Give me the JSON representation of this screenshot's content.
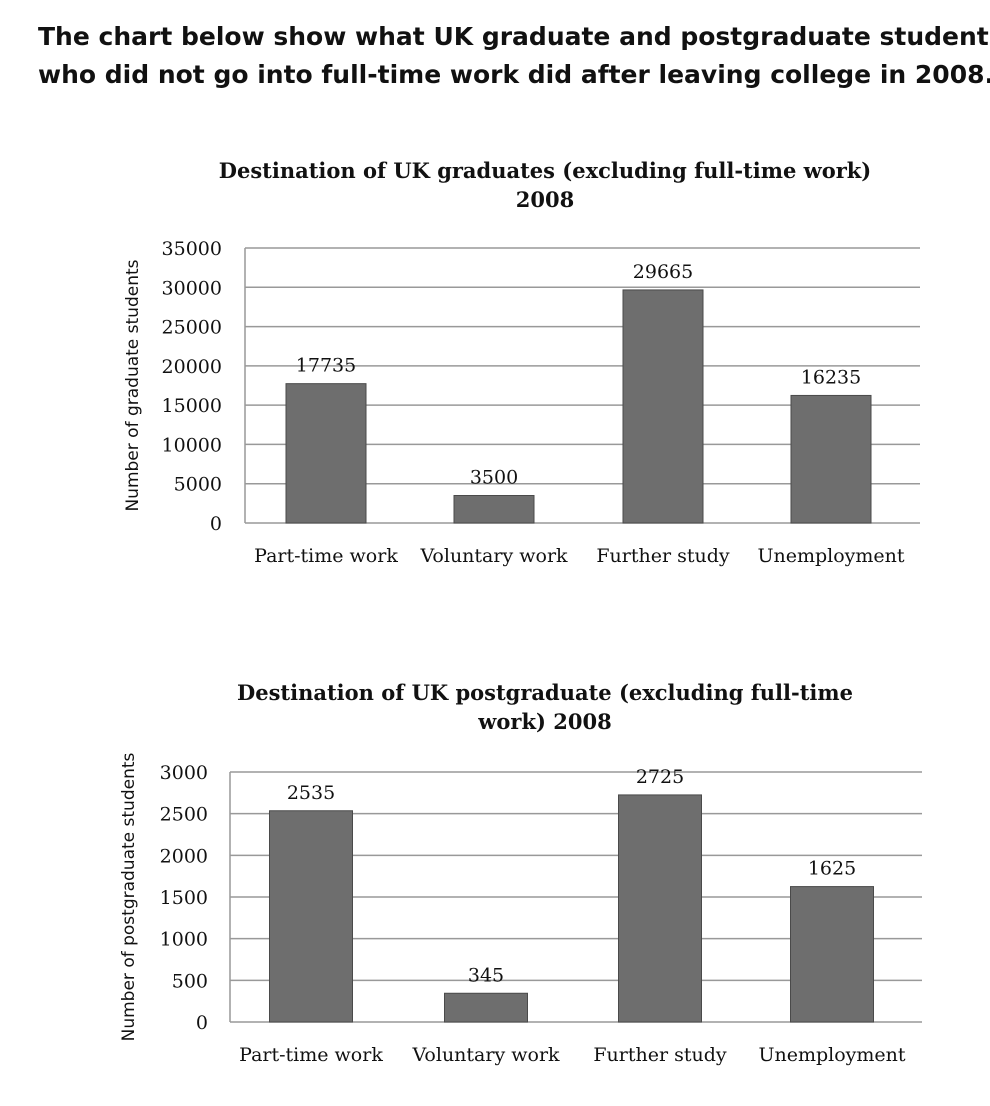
{
  "intro_text": {
    "line1": "The chart below show what UK graduate and postgraduate students",
    "line2": "who did not go into full-time work did after leaving college in 2008."
  },
  "chart_data": [
    {
      "type": "bar",
      "title_lines": [
        "Destination of UK graduates (excluding full-time work)",
        "2008"
      ],
      "xlabel": "",
      "ylabel": "Number of graduate students",
      "categories": [
        "Part-time work",
        "Voluntary work",
        "Further study",
        "Unemployment"
      ],
      "values": [
        17735,
        3500,
        29665,
        16235
      ],
      "value_labels": [
        "17735",
        "3500",
        "29665",
        "16235"
      ],
      "ylim": [
        0,
        35000
      ],
      "yticks": [
        0,
        5000,
        10000,
        15000,
        20000,
        25000,
        30000,
        35000
      ],
      "ytick_labels": [
        "0",
        "5000",
        "10000",
        "15000",
        "20000",
        "25000",
        "30000",
        "35000"
      ],
      "grid": true,
      "legend": "none",
      "bar_color": "#6e6e6e"
    },
    {
      "type": "bar",
      "title_lines": [
        "Destination of UK postgraduate (excluding full-time",
        "work) 2008"
      ],
      "xlabel": "",
      "ylabel": "Number of postgraduate students",
      "categories": [
        "Part-time work",
        "Voluntary work",
        "Further study",
        "Unemployment"
      ],
      "values": [
        2535,
        345,
        2725,
        1625
      ],
      "value_labels": [
        "2535",
        "345",
        "2725",
        "1625"
      ],
      "ylim": [
        0,
        3000
      ],
      "yticks": [
        0,
        500,
        1000,
        1500,
        2000,
        2500,
        3000
      ],
      "ytick_labels": [
        "0",
        "500",
        "1000",
        "1500",
        "2000",
        "2500",
        "3000"
      ],
      "grid": true,
      "legend": "none",
      "bar_color": "#6e6e6e"
    }
  ]
}
